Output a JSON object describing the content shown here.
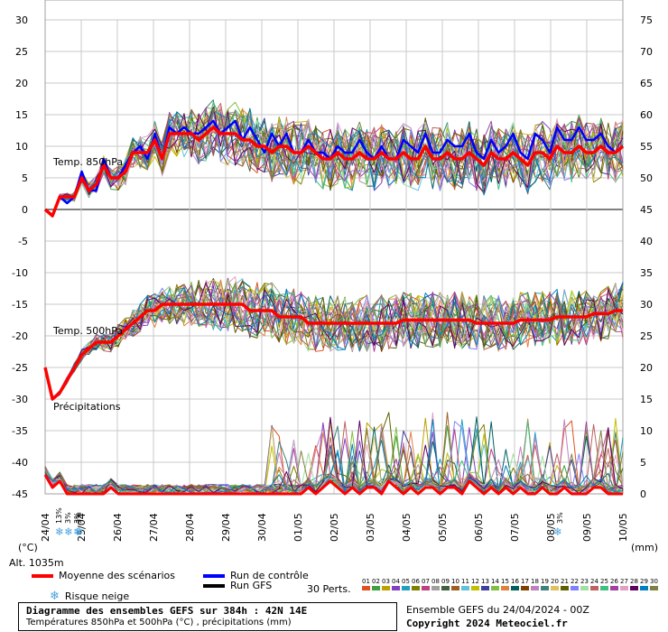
{
  "chart_data": {
    "type": "line",
    "x_labels": [
      "24/04",
      "25/04",
      "26/04",
      "27/04",
      "28/04",
      "29/04",
      "30/04",
      "01/05",
      "02/05",
      "03/05",
      "04/05",
      "05/05",
      "06/05",
      "07/05",
      "08/05",
      "09/05",
      "10/05"
    ],
    "left_ticks": [
      "30",
      "25",
      "20",
      "15",
      "10",
      "5",
      "0",
      "-5",
      "-10",
      "-15",
      "-20",
      "-25",
      "-30",
      "-35",
      "-40",
      "-45"
    ],
    "right_ticks": [
      "75",
      "70",
      "65",
      "60",
      "55",
      "50",
      "45",
      "40",
      "35",
      "30",
      "25",
      "20",
      "15",
      "10",
      "5",
      "0"
    ],
    "left_unit": "(°C)",
    "right_unit": "(mm)",
    "panel_labels": {
      "t850": "Temp. 850hPa",
      "t500": "Temp. 500hPa",
      "precip": "Précipitations"
    },
    "snow_labels": [
      "13%",
      "3%",
      "3%",
      "3%"
    ],
    "snow_late_label": "3%",
    "mean_t850": [
      0,
      -1,
      2,
      2,
      2,
      5,
      3,
      4,
      7,
      5,
      5,
      6,
      9,
      9,
      9,
      11,
      8,
      12,
      12,
      12,
      12,
      11,
      12,
      13,
      12,
      12,
      12,
      11,
      11,
      10,
      10,
      9,
      10,
      10,
      9,
      9,
      10,
      9,
      8,
      8,
      9,
      8,
      8,
      9,
      8,
      8,
      9,
      8,
      8,
      9,
      8,
      8,
      10,
      8,
      8,
      9,
      8,
      8,
      9,
      8,
      7,
      9,
      8,
      8,
      9,
      8,
      7,
      9,
      9,
      8,
      10,
      9,
      9,
      10,
      9,
      9,
      10,
      9,
      9,
      10
    ],
    "control_t850": [
      0,
      -1,
      2,
      1,
      2,
      6,
      3,
      3,
      8,
      5,
      5,
      7,
      9,
      10,
      8,
      12,
      8,
      13,
      12,
      13,
      12,
      12,
      13,
      14,
      12,
      13,
      14,
      11,
      13,
      11,
      9,
      12,
      10,
      12,
      9,
      9,
      11,
      9,
      9,
      8,
      10,
      9,
      9,
      11,
      9,
      8,
      10,
      8,
      8,
      11,
      10,
      9,
      12,
      9,
      9,
      11,
      10,
      10,
      12,
      9,
      8,
      11,
      9,
      10,
      12,
      9,
      8,
      12,
      11,
      9,
      13,
      11,
      11,
      13,
      11,
      11,
      12,
      10,
      9,
      10
    ],
    "mean_t500": [
      -25,
      -30,
      -29,
      -27,
      -25,
      -23,
      -22,
      -21,
      -21,
      -21,
      -20,
      -19,
      -18,
      -17,
      -16,
      -16,
      -15,
      -15,
      -15,
      -15,
      -15,
      -15,
      -15,
      -15,
      -15,
      -15,
      -15,
      -15,
      -16,
      -16,
      -16,
      -16,
      -17,
      -17,
      -17,
      -17,
      -18,
      -18,
      -18,
      -18,
      -18,
      -18,
      -18,
      -18,
      -18,
      -18,
      -18,
      -18,
      -18,
      -17.5,
      -17.5,
      -17.5,
      -17.5,
      -17.5,
      -17.5,
      -17.5,
      -17.5,
      -17.5,
      -17.5,
      -18,
      -18,
      -18,
      -18,
      -18,
      -18,
      -17.5,
      -17.5,
      -17.5,
      -17.5,
      -17.5,
      -17,
      -17,
      -17,
      -17,
      -17,
      -16.5,
      -16.5,
      -16.5,
      -16,
      -16
    ],
    "mean_precip": [
      3,
      1,
      2,
      0,
      0,
      0,
      0,
      0,
      0,
      1,
      0,
      0,
      0,
      0,
      0,
      0,
      0,
      0,
      0,
      0,
      0,
      0,
      0,
      0,
      0,
      0,
      0,
      0,
      0,
      0,
      0,
      0,
      0,
      0,
      0,
      0,
      1,
      0,
      1,
      2,
      1,
      0,
      1,
      0,
      1,
      1,
      0,
      2,
      1,
      0,
      1,
      0,
      1,
      1,
      0,
      1,
      1,
      0,
      2,
      1,
      0,
      1,
      0,
      1,
      0,
      1,
      0,
      0,
      1,
      0,
      0,
      1,
      0,
      0,
      0,
      1,
      1,
      0,
      0,
      0
    ],
    "left_range": [
      -45,
      30
    ],
    "right_range": [
      0,
      75
    ],
    "grid": true
  },
  "legend": {
    "mean_label": "Moyenne des scénarios",
    "control_label": "Run de contrôle",
    "gfs_label": "Run GFS",
    "snow_label": "Risque neige",
    "perts_label": "30 Perts.",
    "pert_numbers": [
      "01",
      "02",
      "03",
      "04",
      "05",
      "06",
      "07",
      "08",
      "09",
      "10",
      "11",
      "12",
      "13",
      "14",
      "15",
      "16",
      "17",
      "18",
      "19",
      "20",
      "21",
      "22",
      "23",
      "24",
      "25",
      "26",
      "27",
      "28",
      "29",
      "30"
    ],
    "pert_colors": [
      "#e05020",
      "#40a040",
      "#c0a000",
      "#8040c0",
      "#20a0c0",
      "#808000",
      "#c04080",
      "#a0a0a0",
      "#406040",
      "#a06020",
      "#60c0e0",
      "#c0c000",
      "#4040a0",
      "#80c040",
      "#e08040",
      "#006060",
      "#804000",
      "#c080c0",
      "#408080",
      "#e0c060",
      "#606000",
      "#8080ff",
      "#a0e0a0",
      "#c06060",
      "#40c080",
      "#a040a0",
      "#e0a0c0",
      "#600060",
      "#0080c0",
      "#808040"
    ]
  },
  "altitude": "Alt. 1035m",
  "footer": {
    "title": "Diagramme des ensembles GEFS sur 384h : 42N 14E",
    "subtitle": "Températures 850hPa et 500hPa (°C) , précipitations (mm)",
    "run": "Ensemble GEFS du 24/04/2024 - 00Z",
    "copyright": "Copyright 2024 Meteociel.fr"
  },
  "colors": {
    "mean": "#ff0000",
    "control": "#0000ff",
    "gfs": "#000000",
    "grid": "#c8c8c8",
    "snow": "#4aa3df"
  }
}
